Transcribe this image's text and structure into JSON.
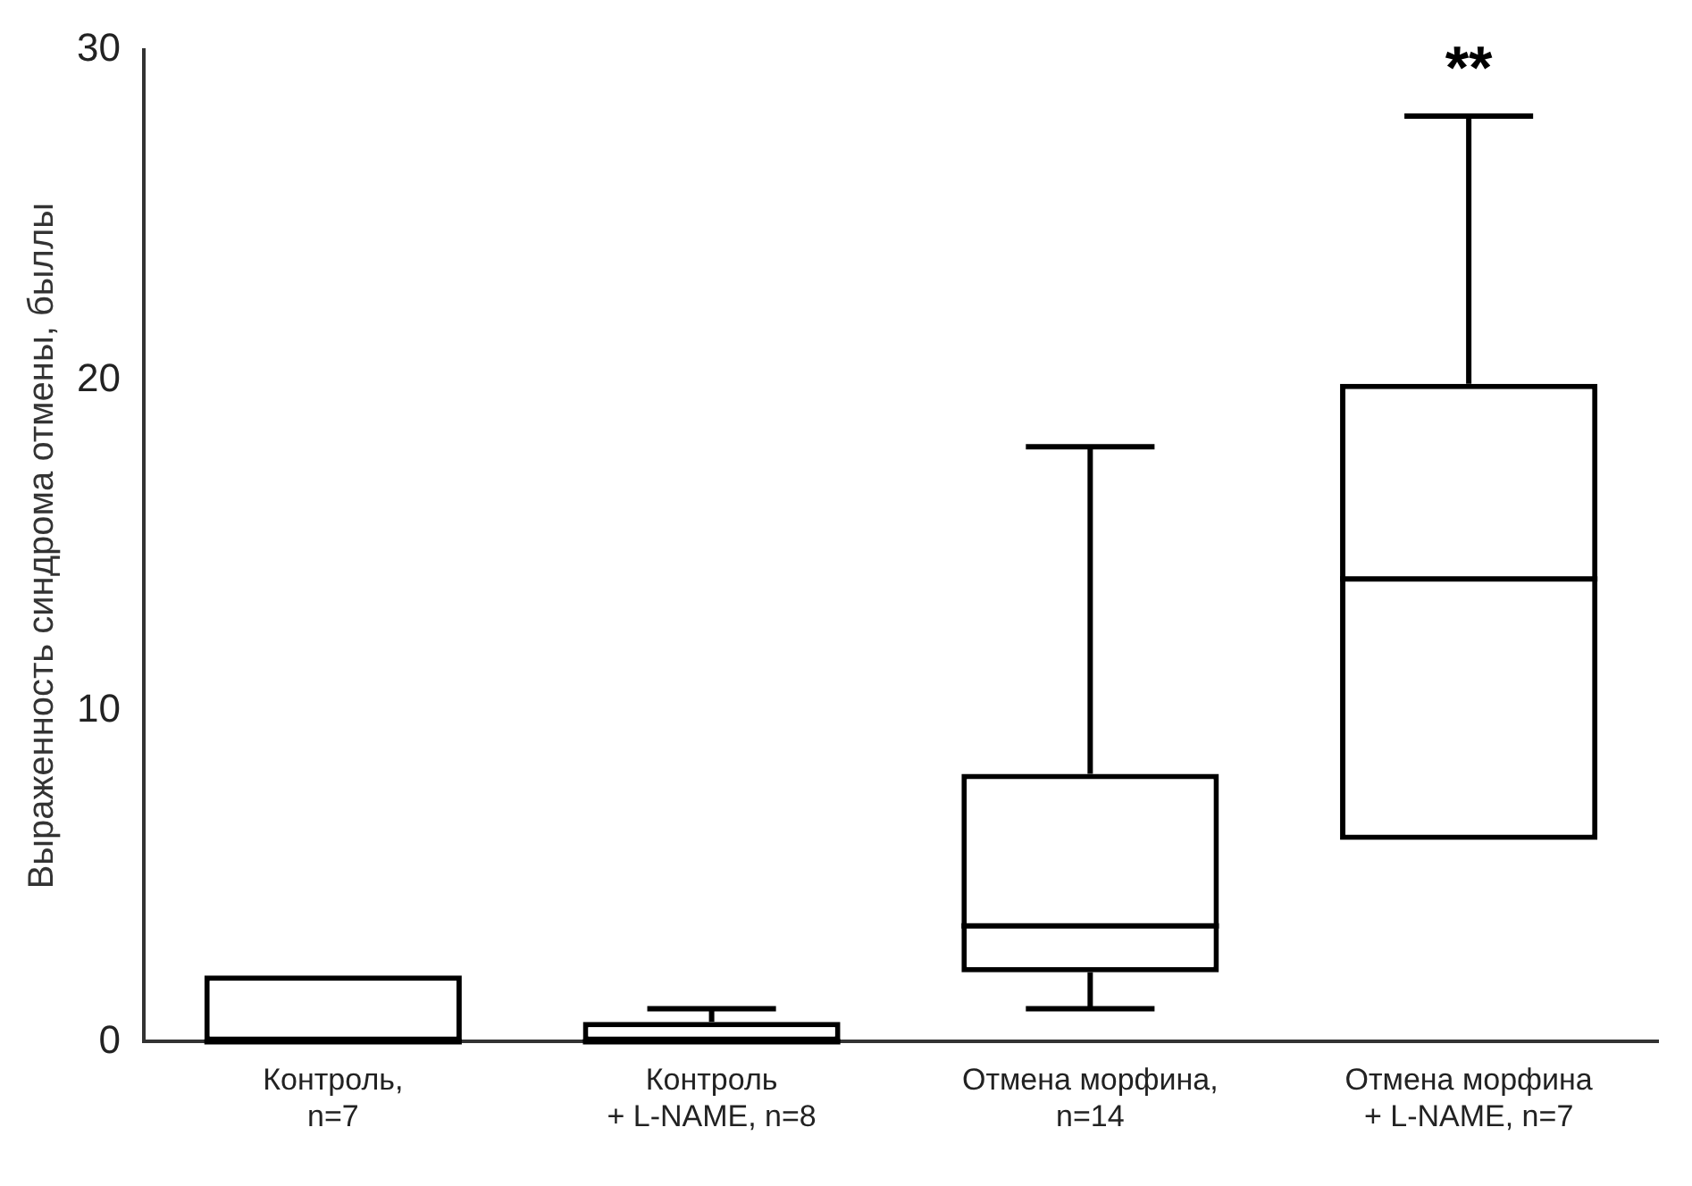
{
  "chart_data": {
    "type": "box",
    "ylabel": "Выраженность синдрома отмены, быллы",
    "categories": [
      "Контроль,\nn=7",
      "Контроль\n+ L-NAME, n=8",
      "Отмена морфина,\nn=14",
      "Отмена морфина\n+ L-NAME, n=7"
    ],
    "boxes": [
      {
        "low": 0,
        "q1": 0,
        "median": 0,
        "q3": 2,
        "high": 2
      },
      {
        "low": 0,
        "q1": 0,
        "median": 0,
        "q3": 0.6,
        "high": 1
      },
      {
        "low": 1,
        "q1": 2.1,
        "median": 3.5,
        "q3": 8.1,
        "high": 18
      },
      {
        "low": 6.1,
        "q1": 6.1,
        "median": 14,
        "q3": 19.9,
        "high": 28
      }
    ],
    "color": "#000000",
    "ylim": [
      0,
      30
    ],
    "yticks": [
      0,
      10,
      20,
      30
    ],
    "grid": false,
    "legend": false,
    "annotations": [
      "**"
    ]
  }
}
